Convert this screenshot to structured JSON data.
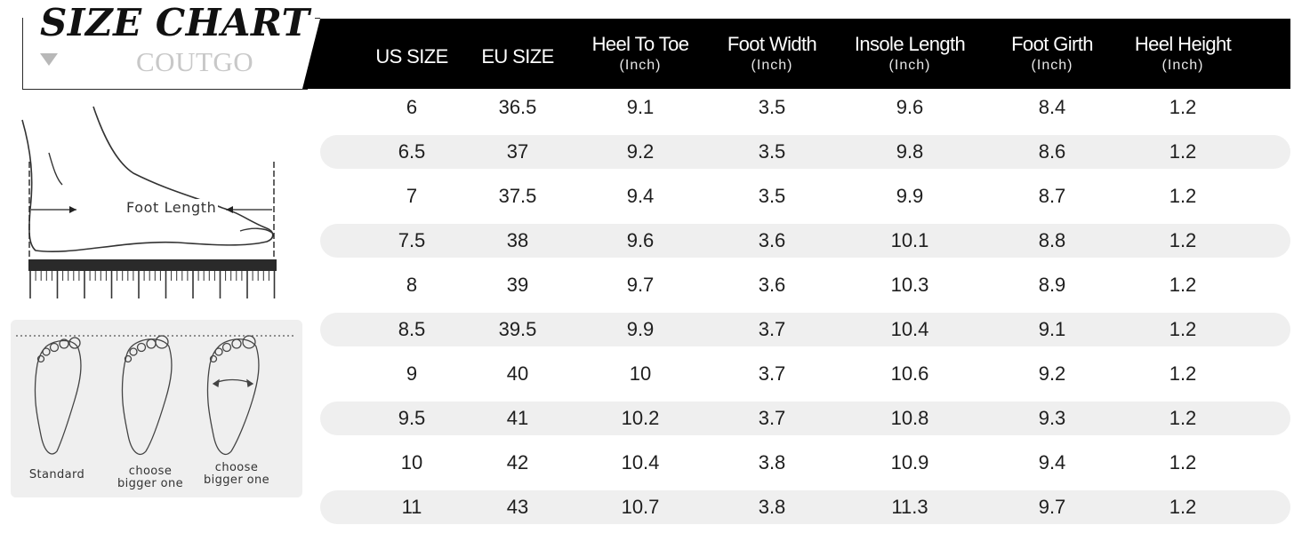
{
  "title": {
    "main": "SIZE CHART",
    "brand": "COUTGO"
  },
  "columns": [
    {
      "name": "US SIZE",
      "unit": ""
    },
    {
      "name": "EU SIZE",
      "unit": ""
    },
    {
      "name": "Heel To Toe",
      "unit": "(Inch)"
    },
    {
      "name": "Foot Width",
      "unit": "(Inch)"
    },
    {
      "name": "Insole Length",
      "unit": "(Inch)"
    },
    {
      "name": "Foot Girth",
      "unit": "(Inch)"
    },
    {
      "name": "Heel Height",
      "unit": "(Inch)"
    }
  ],
  "rows": [
    [
      "6",
      "36.5",
      "9.1",
      "3.5",
      "9.6",
      "8.4",
      "1.2"
    ],
    [
      "6.5",
      "37",
      "9.2",
      "3.5",
      "9.8",
      "8.6",
      "1.2"
    ],
    [
      "7",
      "37.5",
      "9.4",
      "3.5",
      "9.9",
      "8.7",
      "1.2"
    ],
    [
      "7.5",
      "38",
      "9.6",
      "3.6",
      "10.1",
      "8.8",
      "1.2"
    ],
    [
      "8",
      "39",
      "9.7",
      "3.6",
      "10.3",
      "8.9",
      "1.2"
    ],
    [
      "8.5",
      "39.5",
      "9.9",
      "3.7",
      "10.4",
      "9.1",
      "1.2"
    ],
    [
      "9",
      "40",
      "10",
      "3.7",
      "10.6",
      "9.2",
      "1.2"
    ],
    [
      "9.5",
      "41",
      "10.2",
      "3.7",
      "10.8",
      "9.3",
      "1.2"
    ],
    [
      "10",
      "42",
      "10.4",
      "3.8",
      "10.9",
      "9.4",
      "1.2"
    ],
    [
      "11",
      "43",
      "10.7",
      "3.8",
      "11.3",
      "9.7",
      "1.2"
    ]
  ],
  "figures": {
    "foot_length_label": "Foot Length",
    "width_labels": [
      "Standard",
      "choose bigger one",
      "choose bigger one"
    ]
  },
  "colors": {
    "header_bg": "#000000",
    "shaded_row": "#efefef",
    "brand_text": "#c8c8c8"
  }
}
